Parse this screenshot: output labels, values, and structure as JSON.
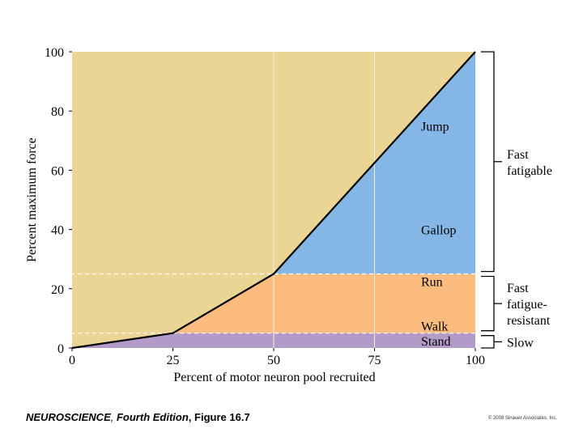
{
  "chart_data": {
    "type": "area",
    "xlabel": "Percent of motor neuron pool recruited",
    "ylabel": "Percent maximum force",
    "xlim": [
      0,
      100
    ],
    "ylim": [
      0,
      100
    ],
    "xticks": [
      0,
      25,
      50,
      75,
      100
    ],
    "yticks": [
      0,
      20,
      40,
      60,
      80,
      100
    ],
    "curve": {
      "x": [
        0,
        25,
        50,
        100
      ],
      "y": [
        0,
        5,
        25,
        100
      ]
    },
    "bands": [
      {
        "from": 0,
        "to": 5,
        "color": "#B29BC8"
      },
      {
        "from": 5,
        "to": 25,
        "color": "#FBBC7E"
      },
      {
        "from": 25,
        "to": 100,
        "color": "#85B7E6"
      }
    ],
    "background_color": "#EAD594",
    "band_thresholds": [
      5,
      25
    ],
    "activity_labels": [
      {
        "text": "Stand",
        "y": 2.5
      },
      {
        "text": "Walk",
        "y": 7.5
      },
      {
        "text": "Run",
        "y": 22.5
      },
      {
        "text": "Gallop",
        "y": 40
      },
      {
        "text": "Jump",
        "y": 75
      }
    ],
    "fiber_types": [
      {
        "lines": [
          "Slow"
        ],
        "from": 0,
        "to": 5
      },
      {
        "lines": [
          "Fast",
          "fatigue-",
          "resistant"
        ],
        "from": 5,
        "to": 25
      },
      {
        "lines": [
          "Fast",
          "fatigable"
        ],
        "from": 25,
        "to": 100
      }
    ],
    "gridlines": {
      "x": [
        50,
        75
      ],
      "color": "#F5F0DC"
    }
  },
  "footer": {
    "book": "NEUROSCIENCE",
    "edition": "Fourth Edition",
    "figure": "Figure 16.7",
    "copyright": "© 2008 Sinauer Associates, Inc."
  }
}
